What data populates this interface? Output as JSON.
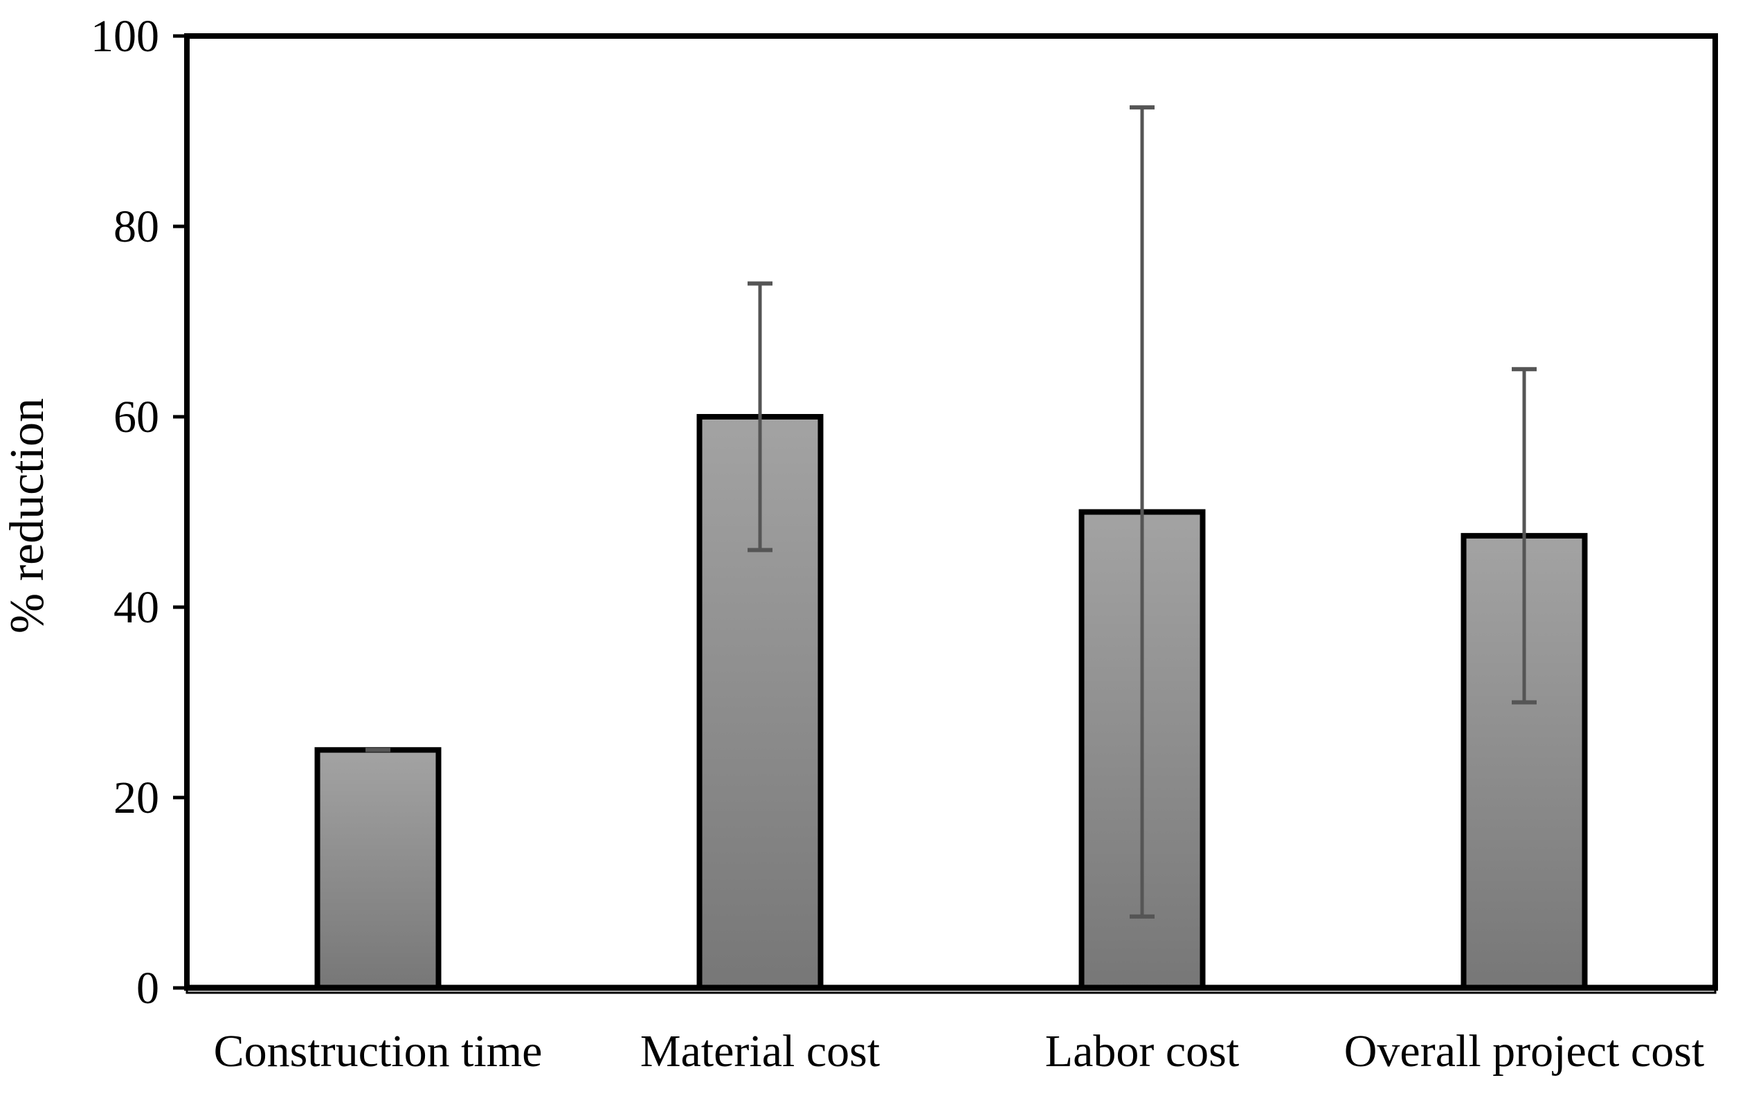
{
  "chart_data": {
    "type": "bar",
    "title": "",
    "xlabel": "",
    "ylabel": "% reduction",
    "ylim": [
      0,
      100
    ],
    "yticks": [
      0,
      20,
      40,
      60,
      80,
      100
    ],
    "grid": false,
    "categories": [
      "Construction time",
      "Material cost",
      "Labor cost",
      "Overall project cost"
    ],
    "values": [
      25,
      60,
      50,
      47.5
    ],
    "error_low": [
      25,
      46,
      7.5,
      30
    ],
    "error_high": [
      25,
      74,
      92.5,
      65
    ],
    "colors": {
      "bar_top": "#a3a3a3",
      "bar_bottom": "#777777",
      "bar_edge": "#000000",
      "error_bar": "#555555",
      "axis_line": "#000000",
      "baseline_fill": "#dcdcdc"
    }
  }
}
